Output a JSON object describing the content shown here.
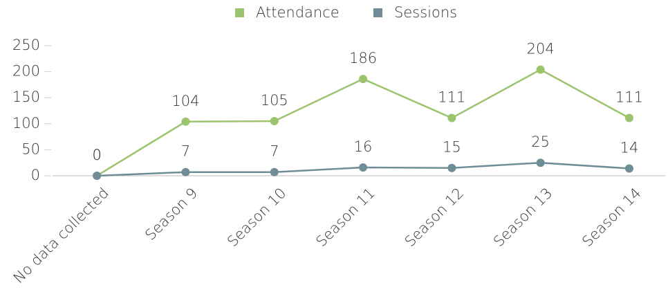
{
  "chart_data": {
    "type": "line",
    "categories": [
      "No data collected",
      "Season 9",
      "Season 10",
      "Season 11",
      "Season 12",
      "Season 13",
      "Season 14"
    ],
    "series": [
      {
        "name": "Attendance",
        "color": "#9cc46e",
        "values": [
          0,
          104,
          105,
          186,
          111,
          204,
          111
        ]
      },
      {
        "name": "Sessions",
        "color": "#6f8d96",
        "values": [
          0,
          7,
          7,
          16,
          15,
          25,
          14
        ]
      }
    ],
    "ylim": [
      0,
      250
    ],
    "yticks": [
      0,
      50,
      100,
      150,
      200,
      250
    ],
    "grid": false,
    "legend": "top"
  }
}
